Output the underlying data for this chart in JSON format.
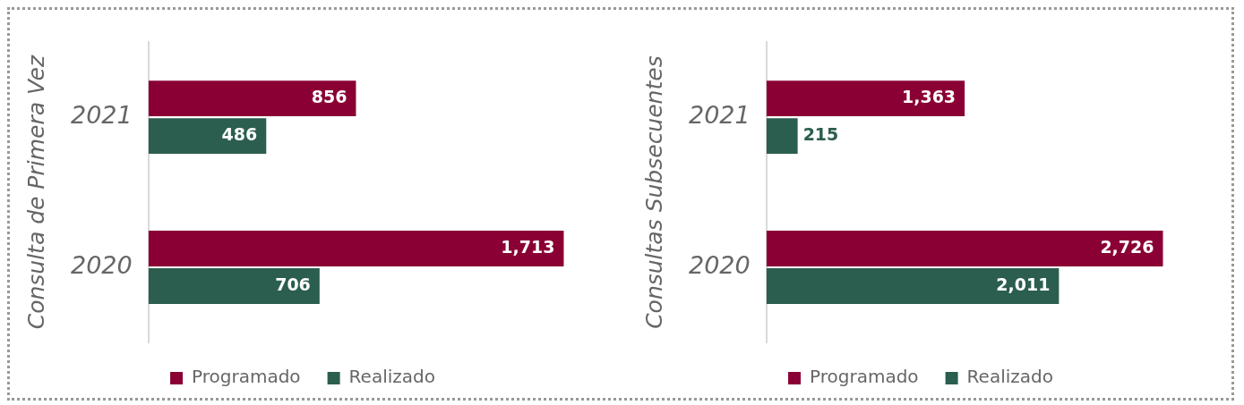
{
  "chart_data": [
    {
      "type": "bar",
      "orientation": "horizontal",
      "ylabel": "Consulta de Primera Vez",
      "categories": [
        "2021",
        "2020"
      ],
      "series": [
        {
          "name": "Programado",
          "color": "#8a0034",
          "values": [
            856,
            1713
          ],
          "value_labels": [
            "856",
            "1,713"
          ]
        },
        {
          "name": "Realizado",
          "color": "#2b5e4f",
          "values": [
            486,
            706
          ],
          "value_labels": [
            "486",
            "706"
          ]
        }
      ],
      "legend": "bottom",
      "grid": false,
      "tick_labels": "y"
    },
    {
      "type": "bar",
      "orientation": "horizontal",
      "ylabel": "Consultas Subsecuentes",
      "categories": [
        "2021",
        "2020"
      ],
      "series": [
        {
          "name": "Programado",
          "color": "#8a0034",
          "values": [
            1363,
            2726
          ],
          "value_labels": [
            "1,363",
            "2,726"
          ]
        },
        {
          "name": "Realizado",
          "color": "#2b5e4f",
          "values": [
            215,
            2011
          ],
          "value_labels": [
            "215",
            "2,011"
          ]
        }
      ],
      "legend": "bottom",
      "grid": false,
      "tick_labels": "y"
    }
  ]
}
